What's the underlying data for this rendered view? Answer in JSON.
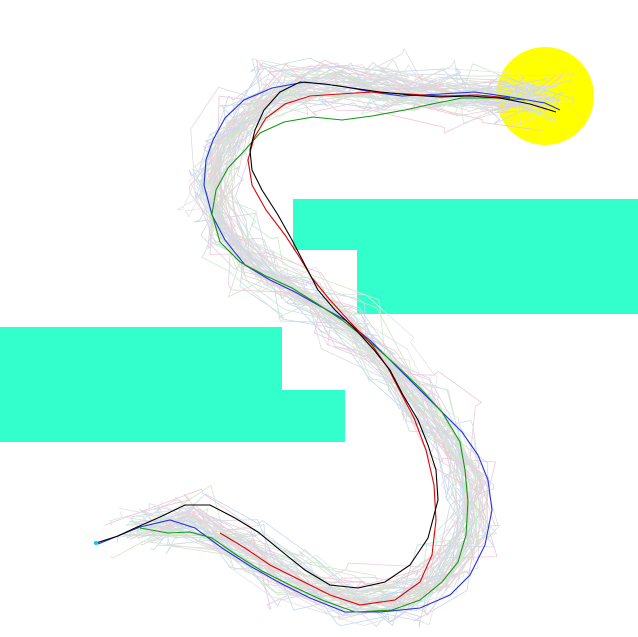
{
  "scene": {
    "background": "#ffffff",
    "obstacle_color": "#33ffcc",
    "goal_color": "#ffff00",
    "goal_label": "",
    "start_label": ""
  },
  "trajectories": [
    {
      "name": "path-black",
      "color": "#000000"
    },
    {
      "name": "path-red",
      "color": "#e00000"
    },
    {
      "name": "path-green",
      "color": "#119911"
    },
    {
      "name": "path-blue",
      "color": "#2233dd"
    },
    {
      "name": "path-faint-grey",
      "color": "#d8d8d8"
    },
    {
      "name": "path-faint-pink",
      "color": "#f0c8d8"
    },
    {
      "name": "path-faint-lightblue",
      "color": "#c8d8f0"
    },
    {
      "name": "path-faint-lightgreen",
      "color": "#cce8cc"
    }
  ]
}
